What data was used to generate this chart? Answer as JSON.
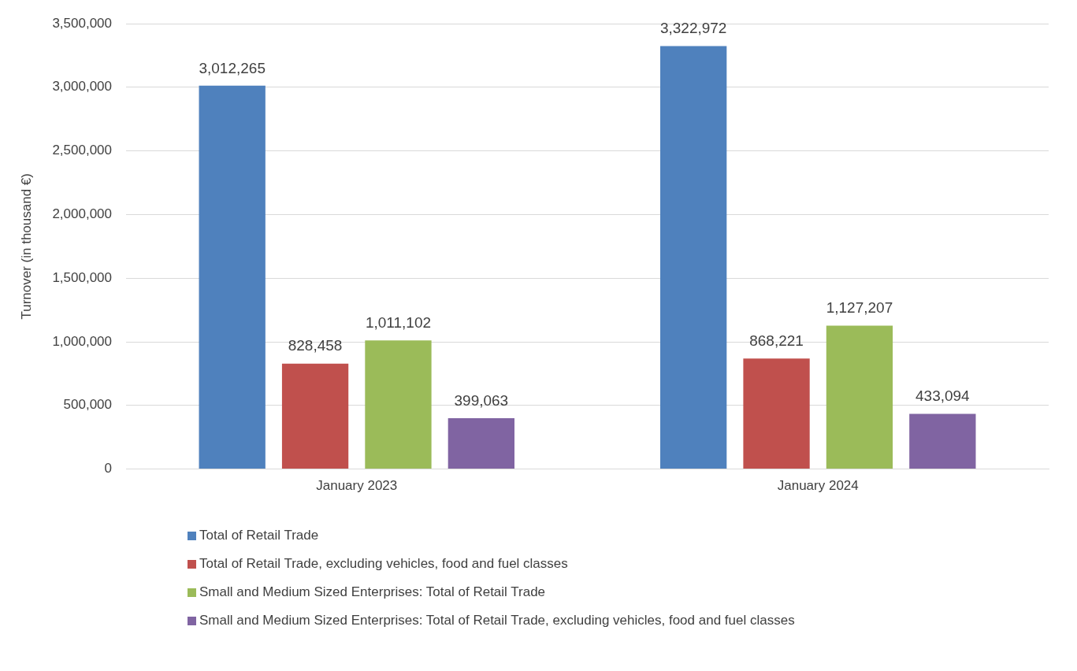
{
  "chart_data": {
    "type": "bar",
    "ylabel": "Turnover (in thousand €)",
    "categories": [
      "January 2023",
      "January 2024"
    ],
    "series": [
      {
        "name": "Total of Retail Trade",
        "color": "#4f81bd",
        "values": [
          3012265,
          3322972
        ],
        "value_labels": [
          "3,012,265",
          "3,322,972"
        ]
      },
      {
        "name": "Total of Retail Trade, excluding vehicles, food and fuel classes",
        "color": "#c0504d",
        "values": [
          828458,
          868221
        ],
        "value_labels": [
          "828,458",
          "868,221"
        ]
      },
      {
        "name": "Small and Medium Sized Enterprises: Total of Retail Trade",
        "color": "#9bbb59",
        "values": [
          1011102,
          1127207
        ],
        "value_labels": [
          "1,011,102",
          "1,127,207"
        ]
      },
      {
        "name": "Small and Medium Sized Enterprises: Total of Retail Trade, excluding vehicles, food and fuel classes",
        "color": "#8064a2",
        "values": [
          399063,
          433094
        ],
        "value_labels": [
          "399,063",
          "433,094"
        ]
      }
    ],
    "ylim": [
      0,
      3500000
    ],
    "yticks": [
      0,
      {
        "value": 500000,
        "label": "500,000"
      },
      {
        "value": 1000000,
        "label": "1,000,000"
      },
      {
        "value": 1500000,
        "label": "1,500,000"
      },
      {
        "value": 2000000,
        "label": "2,000,000"
      },
      {
        "value": 2500000,
        "label": "2,500,000"
      },
      {
        "value": 3000000,
        "label": "3,000,000"
      },
      {
        "value": 3500000,
        "label": "3,500,000"
      }
    ],
    "grid": "y",
    "legend": "bottom"
  }
}
